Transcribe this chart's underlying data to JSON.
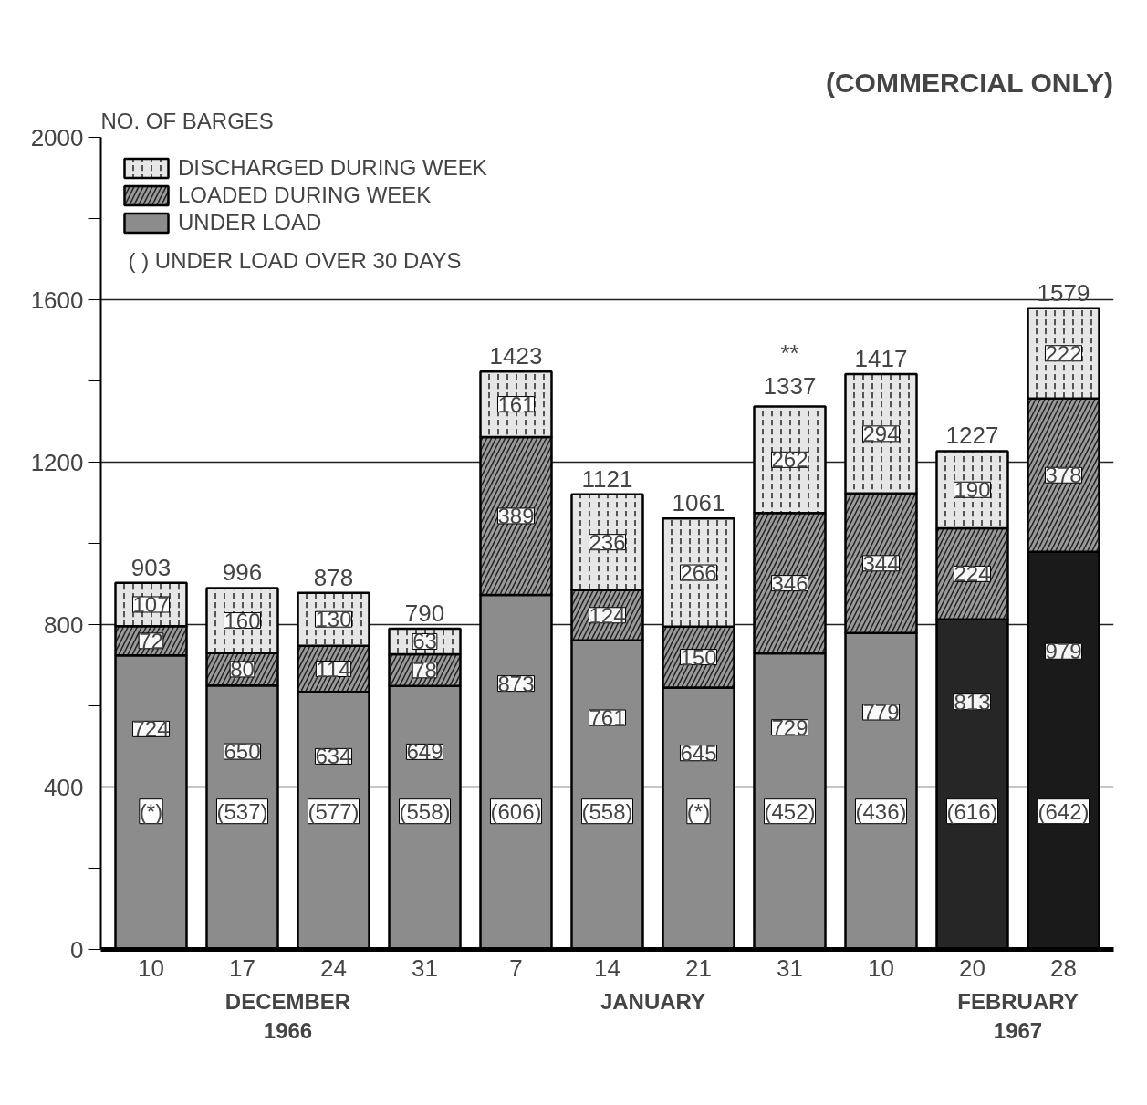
{
  "chart_data": {
    "type": "bar",
    "title": "(COMMERCIAL ONLY)",
    "ylabel": "NO. OF BARGES",
    "stacked": true,
    "data_labels": true,
    "legend": "top left",
    "grid": "y",
    "categories": [
      "10",
      "17",
      "24",
      "31",
      "7",
      "14",
      "21",
      "31",
      "10",
      "20",
      "28"
    ],
    "series": [
      {
        "name": "UNDER LOAD",
        "color": "#8c8c8c",
        "colors": [
          "#8c8c8c",
          "#8c8c8c",
          "#8c8c8c",
          "#8c8c8c",
          "#8c8c8c",
          "#8c8c8c",
          "#8c8c8c",
          "#8c8c8c",
          "#8c8c8c",
          "#262626",
          "#1a1a1a"
        ],
        "values": [
          724,
          650,
          634,
          649,
          873,
          761,
          645,
          729,
          779,
          813,
          979
        ]
      },
      {
        "name": "LOADED DURING WEEK",
        "color": "#9a9a9a",
        "values": [
          72,
          80,
          114,
          78,
          389,
          124,
          150,
          346,
          344,
          224,
          378
        ]
      },
      {
        "name": "DISCHARGED DURING WEEK",
        "color": "#e6e6e6",
        "values": [
          107,
          160,
          130,
          63,
          161,
          236,
          266,
          262,
          294,
          190,
          222
        ]
      }
    ],
    "totals": [
      "903",
      null,
      "878",
      "790",
      "1423",
      "1121",
      "1061",
      "**\n1337",
      "1417",
      "1227",
      "1579"
    ],
    "annotations": [
      "(*)",
      "(537)",
      "(577)",
      "(558)",
      "(606)",
      "(558)",
      "(*)",
      "(452)",
      "(436)",
      "(616)",
      "(642)",
      "DECEMBER\n1966",
      "JANUARY",
      "FEBRUARY\n1967",
      "(          )  UNDER LOAD OVER 30 DAYS",
      "996"
    ],
    "ylim": [
      0,
      2000
    ],
    "yticks": [
      0,
      {
        "value": 200,
        "label": null
      },
      400,
      {
        "value": 600,
        "label": null
      },
      800,
      {
        "value": 1000,
        "label": null
      },
      1200,
      {
        "value": 1400,
        "label": null
      },
      1600,
      {
        "value": 1800,
        "label": null
      },
      2000
    ]
  }
}
